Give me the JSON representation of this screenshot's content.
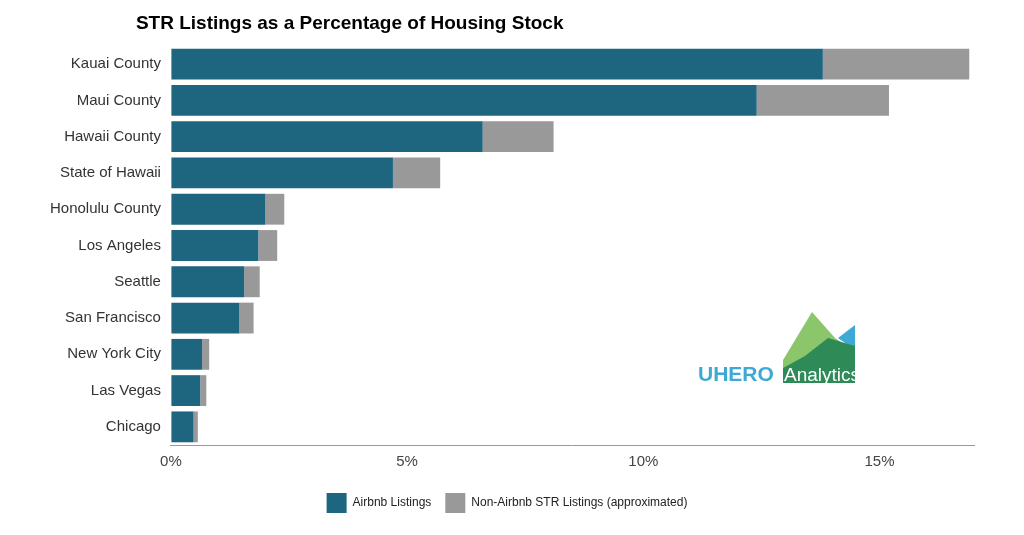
{
  "chart_data": {
    "type": "bar",
    "title": "STR Listings as a Percentage of Housing Stock",
    "orientation": "horizontal",
    "stacked": true,
    "grid": false,
    "legend": "bottom",
    "categories": [
      "Kauai County",
      "Maui County",
      "Hawaii County",
      "State of Hawaii",
      "Honolulu County",
      "Los Angeles",
      "Seattle",
      "San Francisco",
      "New York City",
      "Las Vegas",
      "Chicago"
    ],
    "series": [
      {
        "name": "Airbnb Listings",
        "color": "#1e6580",
        "values": [
          13.8,
          12.4,
          6.6,
          4.7,
          2.0,
          1.85,
          1.55,
          1.45,
          0.66,
          0.62,
          0.48
        ]
      },
      {
        "name": "Non-Airbnb STR Listings (approximated)",
        "color": "#999999",
        "values": [
          3.1,
          2.8,
          1.5,
          1.0,
          0.4,
          0.4,
          0.33,
          0.3,
          0.15,
          0.13,
          0.09
        ]
      }
    ],
    "xlim": [
      0,
      17
    ],
    "xticks": [
      {
        "value": 0,
        "label": "0%"
      },
      {
        "value": 5,
        "label": "5%"
      },
      {
        "value": 10,
        "label": "10%"
      },
      {
        "value": 15,
        "label": "15%"
      }
    ],
    "annotations": [
      "UHERO",
      "Analytics"
    ]
  }
}
